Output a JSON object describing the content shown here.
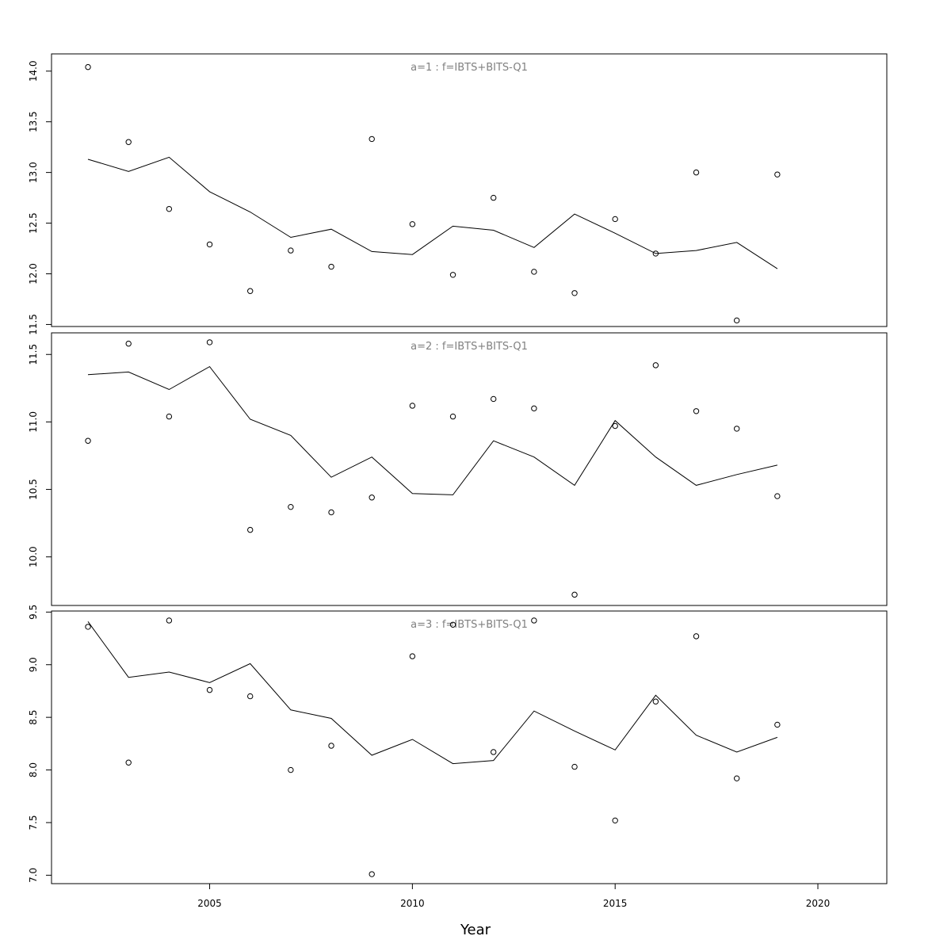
{
  "chart_data": {
    "type": "line",
    "xlabel": "Year",
    "x_ticks": [
      2005,
      2010,
      2015,
      2020
    ],
    "xlim": [
      2001.1,
      2021.7
    ],
    "years": [
      2002,
      2003,
      2004,
      2005,
      2006,
      2007,
      2008,
      2009,
      2010,
      2011,
      2012,
      2013,
      2014,
      2015,
      2016,
      2017,
      2018,
      2019
    ],
    "panels": [
      {
        "title": "a=1  :  f=IBTS+BITS-Q1",
        "ylim": [
          11.48,
          14.17
        ],
        "y_ticks": [
          11.5,
          12.0,
          12.5,
          13.0,
          13.5,
          14.0
        ],
        "observed": [
          14.04,
          13.3,
          12.64,
          12.29,
          11.83,
          12.23,
          12.07,
          13.33,
          12.49,
          11.99,
          12.75,
          12.02,
          11.81,
          12.54,
          12.2,
          13.0,
          11.54,
          12.98
        ],
        "fitted": [
          13.13,
          13.01,
          13.15,
          12.81,
          12.61,
          12.36,
          12.44,
          12.22,
          12.19,
          12.47,
          12.43,
          12.26,
          12.59,
          12.4,
          12.2,
          12.23,
          12.31,
          12.05
        ]
      },
      {
        "title": "a=2  :  f=IBTS+BITS-Q1",
        "ylim": [
          9.64,
          11.66
        ],
        "y_ticks": [
          10.0,
          10.5,
          11.0,
          11.5
        ],
        "observed": [
          10.86,
          11.58,
          11.04,
          11.59,
          10.2,
          10.37,
          10.33,
          10.44,
          11.12,
          11.04,
          11.17,
          11.1,
          9.72,
          10.97,
          11.42,
          11.08,
          10.95,
          10.45
        ],
        "fitted": [
          11.35,
          11.37,
          11.24,
          11.41,
          11.02,
          10.9,
          10.59,
          10.74,
          10.47,
          10.46,
          10.86,
          10.74,
          10.53,
          11.01,
          10.74,
          10.53,
          10.61,
          10.68
        ]
      },
      {
        "title": "a=3  :  f=IBTS+BITS-Q1",
        "ylim": [
          6.92,
          9.51
        ],
        "y_ticks": [
          7.0,
          7.5,
          8.0,
          8.5,
          9.0,
          9.5
        ],
        "observed": [
          9.36,
          8.07,
          9.42,
          8.76,
          8.7,
          8.0,
          8.23,
          7.01,
          9.08,
          9.38,
          8.17,
          9.42,
          8.03,
          7.52,
          8.65,
          9.27,
          7.92,
          8.43
        ],
        "fitted": [
          9.41,
          8.88,
          8.93,
          8.83,
          9.01,
          8.57,
          8.49,
          8.14,
          8.29,
          8.06,
          8.09,
          8.56,
          8.37,
          8.19,
          8.71,
          8.33,
          8.17,
          8.31
        ]
      }
    ]
  }
}
